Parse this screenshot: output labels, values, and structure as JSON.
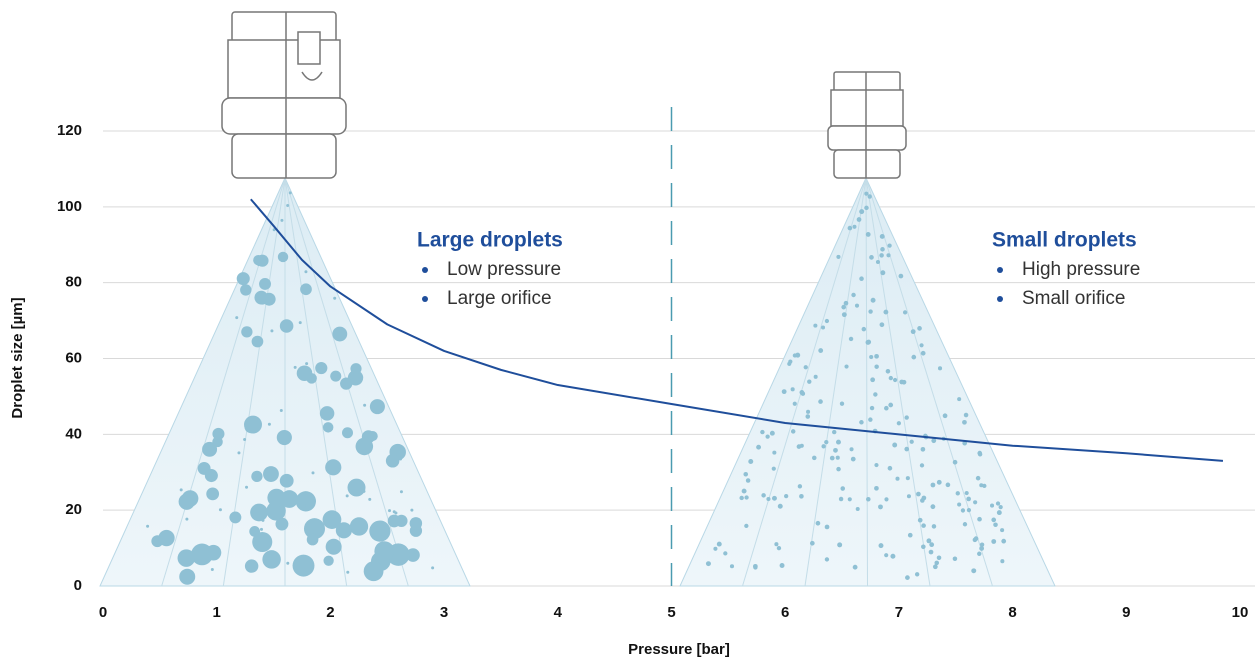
{
  "chart_data": {
    "type": "line",
    "x_label": "Pressure [bar]",
    "y_label": "Droplet size [µm]",
    "xlim": [
      0,
      10
    ],
    "ylim": [
      0,
      120
    ],
    "xticks": [
      0,
      1,
      2,
      3,
      4,
      5,
      6,
      7,
      8,
      9,
      10
    ],
    "yticks": [
      0,
      20,
      40,
      60,
      80,
      100,
      120
    ],
    "grid": true,
    "reference_line_x": 5,
    "series": [
      {
        "color": "#1f4e9b",
        "x": [
          1.3,
          1.5,
          1.75,
          2,
          2.5,
          3,
          3.5,
          4,
          5,
          6,
          7,
          8,
          9,
          9.85
        ],
        "values": [
          102,
          95,
          86,
          79,
          69,
          62,
          57,
          53,
          48,
          43,
          40,
          37,
          35,
          33
        ]
      }
    ],
    "annotations": [
      {
        "title": "Large droplets",
        "items": [
          "Low pressure",
          "Large orifice"
        ]
      },
      {
        "title": "Small droplets",
        "items": [
          "High pressure",
          "Small orifice"
        ]
      }
    ]
  }
}
